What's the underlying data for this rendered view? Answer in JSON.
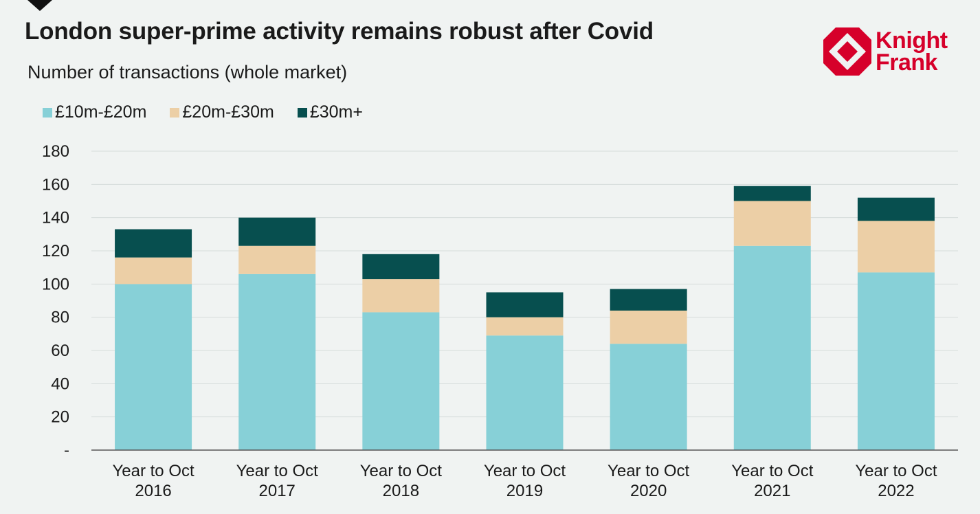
{
  "title": "London super-prime activity remains robust after Covid",
  "subtitle": "Number  of transactions (whole market)",
  "logo": {
    "line1": "Knight",
    "line2": "Frank",
    "color": "#d6002a"
  },
  "colors": {
    "series1": "#87d0d7",
    "series2": "#eccfa6",
    "series3": "#074f4f",
    "grid": "#d6dcdb",
    "axis": "#555555"
  },
  "chart_data": {
    "type": "bar",
    "stacked": true,
    "categories": [
      [
        "Year to Oct",
        "2016"
      ],
      [
        "Year to Oct",
        "2017"
      ],
      [
        "Year to Oct",
        "2018"
      ],
      [
        "Year to Oct",
        "2019"
      ],
      [
        "Year to Oct",
        "2020"
      ],
      [
        "Year to Oct",
        "2021"
      ],
      [
        "Year to Oct",
        "2022"
      ]
    ],
    "series": [
      {
        "name": "£10m-£20m",
        "color": "#87d0d7",
        "values": [
          100,
          106,
          83,
          69,
          64,
          123,
          107
        ]
      },
      {
        "name": "£20m-£30m",
        "color": "#eccfa6",
        "values": [
          16,
          17,
          20,
          11,
          20,
          27,
          31
        ]
      },
      {
        "name": "£30m+",
        "color": "#074f4f",
        "values": [
          17,
          17,
          15,
          15,
          13,
          9,
          14
        ]
      }
    ],
    "ylim": [
      0,
      180
    ],
    "yticks": [
      0,
      20,
      40,
      60,
      80,
      100,
      120,
      140,
      160,
      180
    ],
    "ytick_labels": [
      "-",
      "20",
      "40",
      "60",
      "80",
      "100",
      "120",
      "140",
      "160",
      "180"
    ],
    "grid": true,
    "legend_position": "top-left"
  }
}
